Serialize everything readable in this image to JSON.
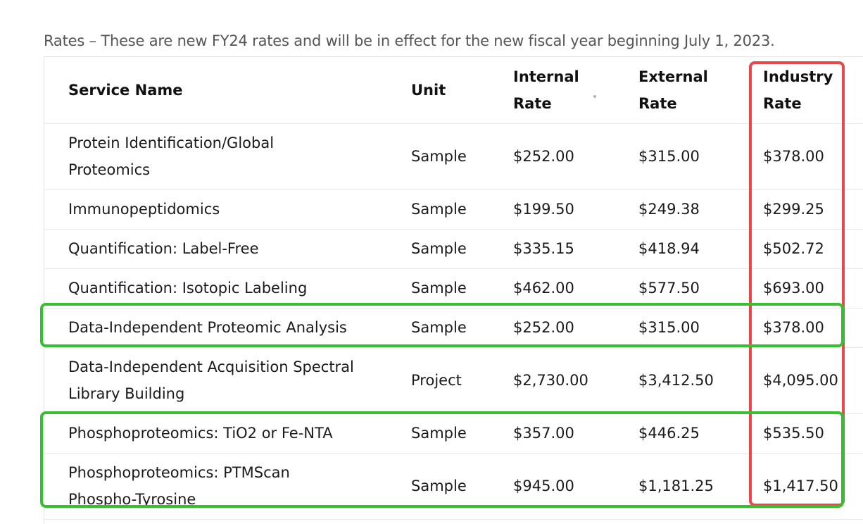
{
  "caption": "Rates – These are new FY24 rates and will be in effect for the new fiscal year beginning July 1, 2023.",
  "table": {
    "headers": {
      "service": "Service Name",
      "unit": "Unit",
      "internal_1": "Internal",
      "internal_2": "Rate",
      "external_1": "External",
      "external_2": "Rate",
      "industry_1": "Industry",
      "industry_2": "Rate"
    },
    "rows": [
      {
        "service_1": "Protein Identification/Global",
        "service_2": "Proteomics",
        "unit": "Sample",
        "internal": "$252.00",
        "external": "$315.00",
        "industry": "$378.00"
      },
      {
        "service_1": "Immunopeptidomics",
        "service_2": "",
        "unit": "Sample",
        "internal": "$199.50",
        "external": "$249.38",
        "industry": "$299.25"
      },
      {
        "service_1": "Quantification: Label-Free",
        "service_2": "",
        "unit": "Sample",
        "internal": "$335.15",
        "external": "$418.94",
        "industry": "$502.72"
      },
      {
        "service_1": "Quantification: Isotopic Labeling",
        "service_2": "",
        "unit": "Sample",
        "internal": "$462.00",
        "external": "$577.50",
        "industry": "$693.00"
      },
      {
        "service_1": "Data-Independent Proteomic Analysis",
        "service_2": "",
        "unit": "Sample",
        "internal": "$252.00",
        "external": "$315.00",
        "industry": "$378.00"
      },
      {
        "service_1": "Data-Independent Acquisition Spectral",
        "service_2": "Library Building",
        "unit": "Project",
        "internal": "$2,730.00",
        "external": "$3,412.50",
        "industry": "$4,095.00"
      },
      {
        "service_1": "Phosphoproteomics: TiO2 or Fe-NTA",
        "service_2": "",
        "unit": "Sample",
        "internal": "$357.00",
        "external": "$446.25",
        "industry": "$535.50"
      },
      {
        "service_1": "Phosphoproteomics: PTMScan",
        "service_2": "Phospho-Tyrosine",
        "unit": "Sample",
        "internal": "$945.00",
        "external": "$1,181.25",
        "industry": "$1,417.50"
      }
    ]
  },
  "highlights": {
    "industry_column_color": "#e8474c",
    "row_highlight_color": "#36c02f"
  }
}
